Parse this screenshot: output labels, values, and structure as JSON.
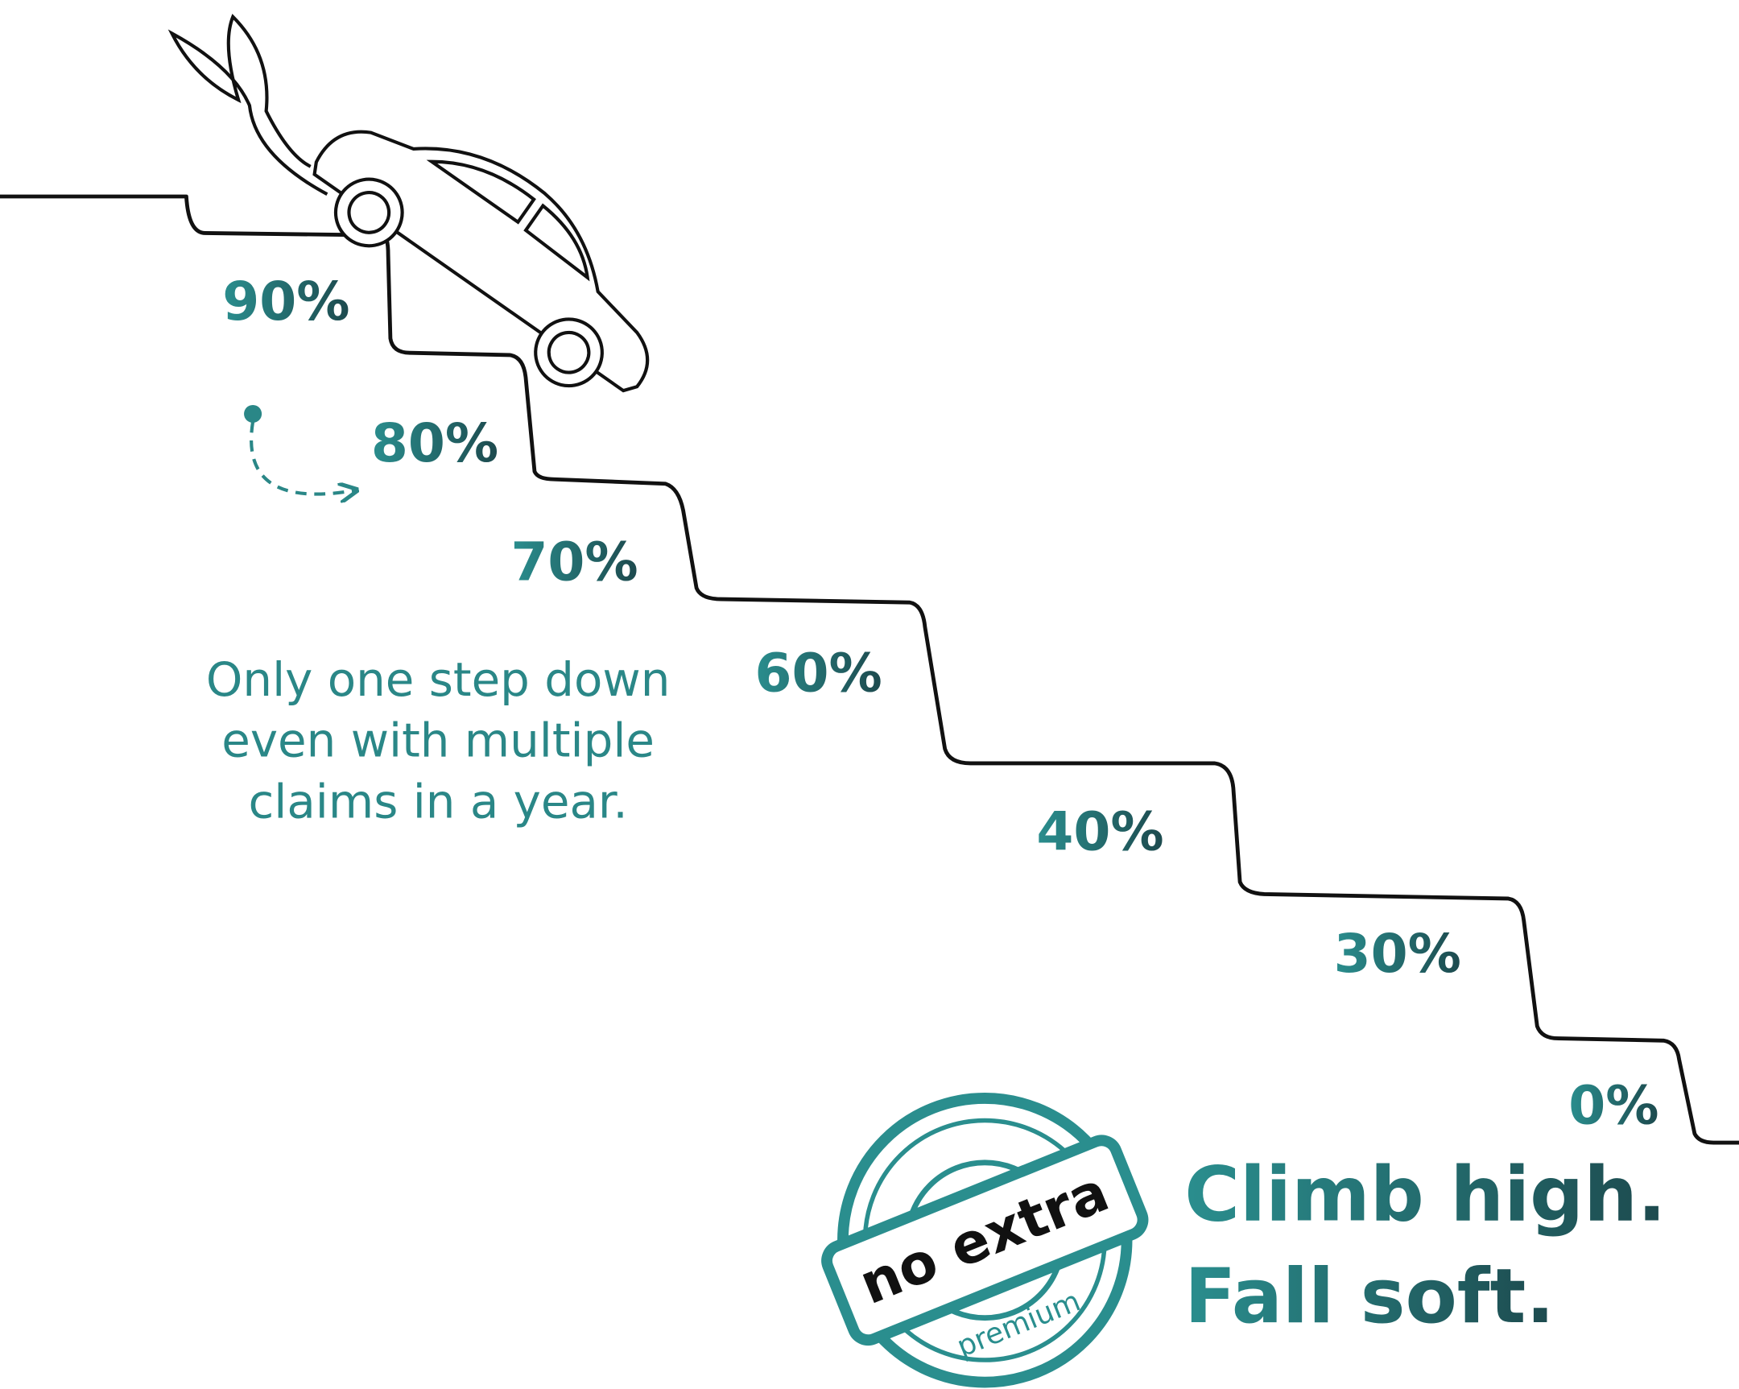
{
  "steps": [
    "90%",
    "80%",
    "70%",
    "60%",
    "40%",
    "30%",
    "0%"
  ],
  "note": [
    "Only one step down",
    "even with multiple",
    "claims in a year."
  ],
  "tagline": [
    "Climb high.",
    "Fall soft."
  ],
  "stamp": {
    "top": "no extra",
    "bottom": "premium"
  }
}
